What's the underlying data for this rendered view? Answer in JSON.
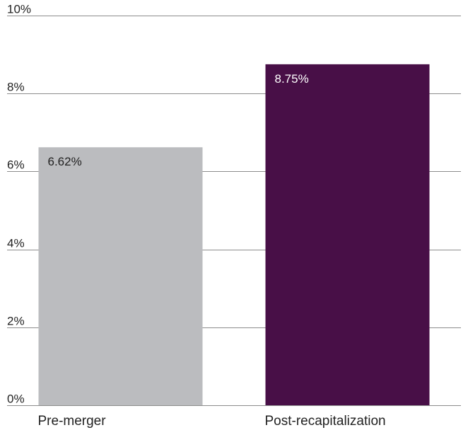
{
  "chart_data": {
    "type": "bar",
    "categories": [
      "Pre-merger",
      "Post-recapitalization"
    ],
    "values": [
      6.62,
      8.75
    ],
    "data_labels": [
      "6.62%",
      "8.75%"
    ],
    "ylim": [
      0,
      10
    ],
    "yticks": [
      0,
      2,
      4,
      6,
      8,
      10
    ],
    "ytick_labels": [
      "0%",
      "2%",
      "4%",
      "6%",
      "8%",
      "10%"
    ],
    "grid": true,
    "legend": "none",
    "colors": {
      "bars": [
        "#bbbcbf",
        "#480f47"
      ],
      "data_label_text": [
        "#222222",
        "#ffffff"
      ],
      "grid": "#8c8c8c"
    }
  }
}
